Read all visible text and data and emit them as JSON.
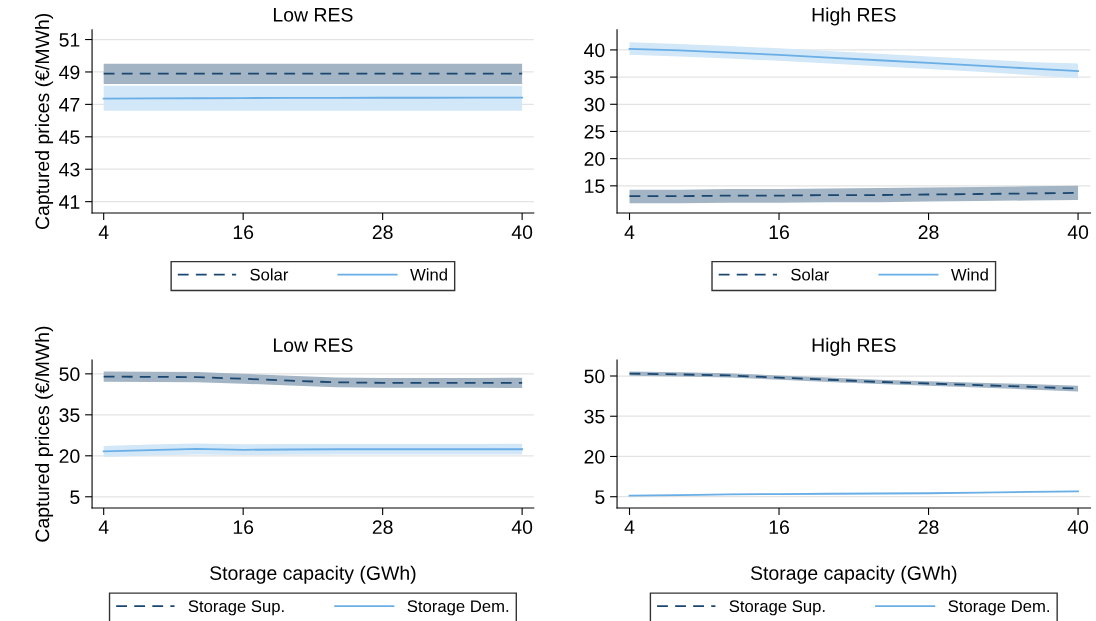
{
  "chart_data": [
    {
      "type": "line",
      "title": "Low RES",
      "ylabel": "Captured prices (€/MWh)",
      "x": [
        4,
        8,
        12,
        16,
        20,
        24,
        28,
        32,
        36,
        40
      ],
      "xlim": [
        3,
        41
      ],
      "xticks": [
        4,
        16,
        28,
        40
      ],
      "ylim": [
        40.3,
        51.6
      ],
      "yticks": [
        41,
        43,
        45,
        47,
        49,
        51
      ],
      "grid": "y",
      "legend": "bottom",
      "tick_labels": "xy",
      "series": [
        {
          "name": "Solar",
          "color": "#1a476f",
          "line_style": "dashed",
          "values": [
            48.9,
            48.9,
            48.9,
            48.9,
            48.9,
            48.9,
            48.9,
            48.9,
            48.9,
            48.9
          ],
          "lower": [
            48.25,
            48.25,
            48.25,
            48.25,
            48.25,
            48.25,
            48.25,
            48.25,
            48.25,
            48.25
          ],
          "upper": [
            49.5,
            49.5,
            49.5,
            49.5,
            49.5,
            49.5,
            49.5,
            49.5,
            49.5,
            49.5
          ]
        },
        {
          "name": "Wind",
          "color": "#6aaee6",
          "line_style": "solid",
          "values": [
            47.35,
            47.37,
            47.38,
            47.39,
            47.4,
            47.4,
            47.41,
            47.41,
            47.42,
            47.42
          ],
          "lower": [
            46.6,
            46.6,
            46.6,
            46.6,
            46.6,
            46.6,
            46.6,
            46.6,
            46.6,
            46.6
          ],
          "upper": [
            48.15,
            48.15,
            48.15,
            48.15,
            48.15,
            48.15,
            48.15,
            48.15,
            48.15,
            48.15
          ]
        }
      ]
    },
    {
      "type": "line",
      "title": "High RES",
      "x": [
        4,
        8,
        12,
        16,
        20,
        24,
        28,
        32,
        36,
        40
      ],
      "xlim": [
        3,
        41
      ],
      "xticks": [
        4,
        16,
        28,
        40
      ],
      "ylim": [
        10,
        43.7
      ],
      "yticks": [
        15,
        20,
        25,
        30,
        35,
        40
      ],
      "grid": "y",
      "legend": "bottom",
      "series": [
        {
          "name": "Solar",
          "color": "#1a476f",
          "line_style": "dashed",
          "values": [
            13.1,
            13.1,
            13.2,
            13.2,
            13.3,
            13.3,
            13.4,
            13.5,
            13.6,
            13.7
          ],
          "lower": [
            11.8,
            11.8,
            11.9,
            11.9,
            12.0,
            12.0,
            12.1,
            12.2,
            12.3,
            12.4
          ],
          "upper": [
            14.3,
            14.3,
            14.4,
            14.4,
            14.5,
            14.6,
            14.7,
            14.8,
            14.9,
            15.0
          ]
        },
        {
          "name": "Wind",
          "color": "#6aaee6",
          "line_style": "solid",
          "values": [
            40.2,
            39.9,
            39.5,
            39.1,
            38.6,
            38.1,
            37.6,
            37.1,
            36.6,
            36.1
          ],
          "lower": [
            39.1,
            38.8,
            38.4,
            38.0,
            37.5,
            37.0,
            36.5,
            36.0,
            35.4,
            34.8
          ],
          "upper": [
            41.4,
            41.1,
            40.7,
            40.3,
            39.8,
            39.3,
            38.8,
            38.3,
            37.8,
            37.5
          ]
        }
      ]
    },
    {
      "type": "line",
      "title": "Low RES",
      "ylabel": "Captured prices (€/MWh)",
      "xlabel": "Storage capacity (GWh)",
      "x": [
        4,
        8,
        12,
        16,
        20,
        24,
        28,
        32,
        36,
        40
      ],
      "xlim": [
        3,
        41
      ],
      "xticks": [
        4,
        16,
        28,
        40
      ],
      "ylim": [
        0.9,
        55
      ],
      "yticks": [
        5,
        20,
        35,
        50
      ],
      "grid": "y",
      "legend": "bottom",
      "series": [
        {
          "name": "Storage Sup.",
          "color": "#1a476f",
          "line_style": "dashed",
          "values": [
            49.0,
            48.9,
            48.8,
            48.2,
            47.5,
            46.9,
            46.7,
            46.7,
            46.7,
            46.7
          ],
          "lower": [
            47.1,
            47.0,
            46.9,
            46.4,
            45.7,
            45.1,
            44.9,
            44.9,
            44.9,
            44.8
          ],
          "upper": [
            50.9,
            50.8,
            50.7,
            50.0,
            49.3,
            48.7,
            48.5,
            48.5,
            48.5,
            48.6
          ]
        },
        {
          "name": "Storage Dem.",
          "color": "#6aaee6",
          "line_style": "solid",
          "values": [
            21.6,
            22.1,
            22.5,
            22.2,
            22.3,
            22.4,
            22.4,
            22.4,
            22.4,
            22.4
          ],
          "lower": [
            19.6,
            20.1,
            20.5,
            20.3,
            20.4,
            20.5,
            20.5,
            20.5,
            20.5,
            20.5
          ],
          "upper": [
            23.6,
            24.1,
            24.5,
            24.2,
            24.3,
            24.3,
            24.3,
            24.3,
            24.3,
            24.4
          ]
        }
      ]
    },
    {
      "type": "line",
      "title": "High RES",
      "xlabel": "Storage capacity (GWh)",
      "x": [
        4,
        8,
        12,
        16,
        20,
        24,
        28,
        32,
        36,
        40
      ],
      "xlim": [
        3,
        41
      ],
      "xticks": [
        4,
        16,
        28,
        40
      ],
      "ylim": [
        0.8,
        55.9
      ],
      "yticks": [
        5,
        20,
        35,
        50
      ],
      "grid": "y",
      "legend": "bottom",
      "series": [
        {
          "name": "Storage Sup.",
          "color": "#1a476f",
          "line_style": "dashed",
          "values": [
            50.9,
            50.6,
            50.2,
            49.4,
            48.6,
            47.8,
            47.2,
            46.6,
            46.0,
            45.3
          ],
          "lower": [
            50.1,
            49.8,
            49.4,
            48.6,
            47.8,
            47.0,
            46.4,
            45.7,
            45.0,
            44.2
          ],
          "upper": [
            51.7,
            51.4,
            51.0,
            50.2,
            49.4,
            48.6,
            48.0,
            47.5,
            47.0,
            46.4
          ]
        },
        {
          "name": "Storage Dem.",
          "color": "#6aaee6",
          "line_style": "solid",
          "values": [
            5.4,
            5.6,
            5.9,
            6.0,
            6.1,
            6.2,
            6.3,
            6.5,
            6.8,
            7.0
          ],
          "lower": [
            5.2,
            5.4,
            5.7,
            5.8,
            5.9,
            6.0,
            6.1,
            6.3,
            6.6,
            6.8
          ],
          "upper": [
            5.6,
            5.8,
            6.1,
            6.2,
            6.3,
            6.4,
            6.5,
            6.7,
            7.0,
            7.2
          ]
        }
      ]
    }
  ]
}
